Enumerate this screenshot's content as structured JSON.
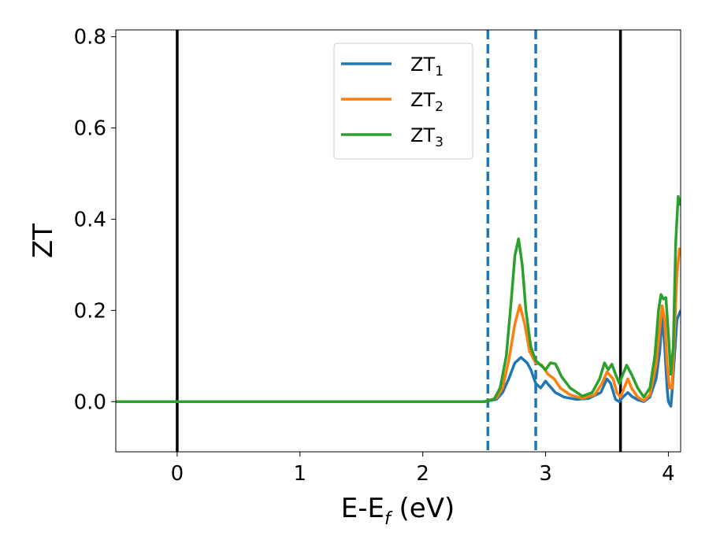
{
  "chart_data": {
    "type": "line",
    "xlabel": {
      "main": "E-E",
      "sub": "f",
      "rest": " (eV)"
    },
    "ylabel": "ZT",
    "xlim": [
      -0.5,
      4.1
    ],
    "ylim": [
      -0.11,
      0.815
    ],
    "xticks": [
      0,
      1,
      2,
      3,
      4
    ],
    "yticks": [
      0.0,
      0.2,
      0.4,
      0.6,
      0.8
    ],
    "xtick_labels": [
      "0",
      "1",
      "2",
      "3",
      "4"
    ],
    "ytick_labels": [
      "0.0",
      "0.2",
      "0.4",
      "0.6",
      "0.8"
    ],
    "grid": false,
    "legend_placement": "upper-center",
    "vertical_lines": [
      {
        "x": 0.0,
        "style": "solid",
        "color": "#000000"
      },
      {
        "x": 3.61,
        "style": "solid",
        "color": "#000000"
      },
      {
        "x": 2.53,
        "style": "dashed",
        "color": "#1f77b4"
      },
      {
        "x": 2.92,
        "style": "dashed",
        "color": "#1f77b4"
      }
    ],
    "series": [
      {
        "name": "ZT",
        "sub": "1",
        "color": "#1f77b4",
        "points": [
          [
            -0.5,
            0
          ],
          [
            2.5,
            0
          ],
          [
            2.6,
            0.005
          ],
          [
            2.65,
            0.02
          ],
          [
            2.7,
            0.05
          ],
          [
            2.75,
            0.085
          ],
          [
            2.8,
            0.097
          ],
          [
            2.85,
            0.085
          ],
          [
            2.88,
            0.07
          ],
          [
            2.92,
            0.04
          ],
          [
            2.96,
            0.03
          ],
          [
            3.0,
            0.045
          ],
          [
            3.03,
            0.035
          ],
          [
            3.08,
            0.02
          ],
          [
            3.15,
            0.01
          ],
          [
            3.25,
            0.005
          ],
          [
            3.35,
            0.007
          ],
          [
            3.45,
            0.02
          ],
          [
            3.5,
            0.05
          ],
          [
            3.53,
            0.04
          ],
          [
            3.57,
            0.005
          ],
          [
            3.6,
            0.0
          ],
          [
            3.63,
            0.01
          ],
          [
            3.67,
            0.02
          ],
          [
            3.7,
            0.012
          ],
          [
            3.75,
            0.004
          ],
          [
            3.8,
            0.0
          ],
          [
            3.85,
            0.01
          ],
          [
            3.9,
            0.05
          ],
          [
            3.93,
            0.11
          ],
          [
            3.95,
            0.19
          ],
          [
            3.97,
            0.12
          ],
          [
            3.99,
            0.03
          ],
          [
            4.0,
            0.0
          ],
          [
            4.02,
            -0.01
          ],
          [
            4.03,
            0.02
          ],
          [
            4.05,
            0.1
          ],
          [
            4.07,
            0.18
          ],
          [
            4.1,
            0.2
          ]
        ]
      },
      {
        "name": "ZT",
        "sub": "2",
        "color": "#ff7f0e",
        "points": [
          [
            -0.5,
            0
          ],
          [
            2.5,
            0
          ],
          [
            2.6,
            0.008
          ],
          [
            2.65,
            0.03
          ],
          [
            2.7,
            0.09
          ],
          [
            2.75,
            0.17
          ],
          [
            2.79,
            0.212
          ],
          [
            2.83,
            0.17
          ],
          [
            2.87,
            0.11
          ],
          [
            2.92,
            0.085
          ],
          [
            2.97,
            0.08
          ],
          [
            3.02,
            0.06
          ],
          [
            3.07,
            0.05
          ],
          [
            3.12,
            0.03
          ],
          [
            3.2,
            0.015
          ],
          [
            3.3,
            0.007
          ],
          [
            3.4,
            0.015
          ],
          [
            3.46,
            0.04
          ],
          [
            3.5,
            0.065
          ],
          [
            3.55,
            0.05
          ],
          [
            3.58,
            0.02
          ],
          [
            3.61,
            0.01
          ],
          [
            3.64,
            0.03
          ],
          [
            3.67,
            0.05
          ],
          [
            3.7,
            0.03
          ],
          [
            3.75,
            0.01
          ],
          [
            3.8,
            0.002
          ],
          [
            3.85,
            0.015
          ],
          [
            3.9,
            0.08
          ],
          [
            3.93,
            0.16
          ],
          [
            3.95,
            0.21
          ],
          [
            3.97,
            0.18
          ],
          [
            3.99,
            0.08
          ],
          [
            4.01,
            0.03
          ],
          [
            4.03,
            0.03
          ],
          [
            4.05,
            0.15
          ],
          [
            4.07,
            0.28
          ],
          [
            4.09,
            0.335
          ],
          [
            4.1,
            0.32
          ]
        ]
      },
      {
        "name": "ZT",
        "sub": "3",
        "color": "#2ca02c",
        "points": [
          [
            -0.5,
            0
          ],
          [
            2.5,
            0
          ],
          [
            2.58,
            0.005
          ],
          [
            2.63,
            0.03
          ],
          [
            2.68,
            0.1
          ],
          [
            2.72,
            0.22
          ],
          [
            2.75,
            0.32
          ],
          [
            2.78,
            0.357
          ],
          [
            2.81,
            0.3
          ],
          [
            2.84,
            0.2
          ],
          [
            2.88,
            0.12
          ],
          [
            2.92,
            0.09
          ],
          [
            2.96,
            0.08
          ],
          [
            3.0,
            0.07
          ],
          [
            3.04,
            0.085
          ],
          [
            3.08,
            0.083
          ],
          [
            3.13,
            0.055
          ],
          [
            3.2,
            0.03
          ],
          [
            3.3,
            0.012
          ],
          [
            3.38,
            0.02
          ],
          [
            3.44,
            0.05
          ],
          [
            3.48,
            0.085
          ],
          [
            3.51,
            0.07
          ],
          [
            3.54,
            0.082
          ],
          [
            3.57,
            0.06
          ],
          [
            3.6,
            0.04
          ],
          [
            3.63,
            0.06
          ],
          [
            3.66,
            0.08
          ],
          [
            3.7,
            0.06
          ],
          [
            3.75,
            0.03
          ],
          [
            3.8,
            0.01
          ],
          [
            3.85,
            0.03
          ],
          [
            3.89,
            0.1
          ],
          [
            3.92,
            0.2
          ],
          [
            3.94,
            0.235
          ],
          [
            3.96,
            0.225
          ],
          [
            3.98,
            0.228
          ],
          [
            4.0,
            0.15
          ],
          [
            4.02,
            0.06
          ],
          [
            4.04,
            0.12
          ],
          [
            4.06,
            0.35
          ],
          [
            4.08,
            0.45
          ],
          [
            4.1,
            0.43
          ]
        ]
      }
    ]
  }
}
